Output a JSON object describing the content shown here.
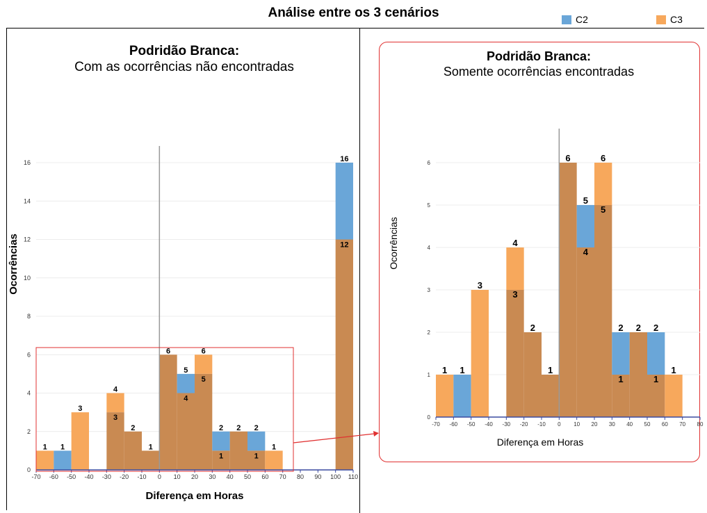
{
  "title": "Análise entre os 3 cenários",
  "legend": [
    {
      "name": "C2",
      "color": "#6aa6d8"
    },
    {
      "name": "C3",
      "color": "#f7a85c"
    }
  ],
  "colors": {
    "c2": "#6aa6d8",
    "c3": "#f7a85c",
    "overlap": "#c98a52",
    "highlight": "#e03030"
  },
  "panels": [
    {
      "title_bold": "Podridão Branca:",
      "title_sub": "Com as ocorrências não encontradas"
    },
    {
      "title_bold": "Podridão Branca:",
      "title_sub": "Somente ocorrências encontradas"
    }
  ],
  "chart_data": [
    {
      "type": "bar",
      "title": "Podridão Branca: Com as ocorrências não encontradas",
      "xlabel": "Diferença em Horas",
      "ylabel": "Ocorrências",
      "xlim": [
        -70,
        110
      ],
      "ylim": [
        0,
        17
      ],
      "xticks": [
        -70,
        -60,
        -50,
        -40,
        -30,
        -20,
        -10,
        0,
        10,
        20,
        30,
        40,
        50,
        60,
        70,
        80,
        90,
        100,
        110
      ],
      "yticks": [
        0,
        2,
        4,
        6,
        8,
        10,
        12,
        14,
        16
      ],
      "bin_width": 10,
      "series": [
        {
          "name": "C2",
          "x": [
            -60,
            -30,
            -20,
            -10,
            0,
            10,
            20,
            30,
            40,
            50,
            100
          ],
          "values": [
            1,
            3,
            2,
            1,
            6,
            5,
            5,
            2,
            2,
            2,
            16
          ]
        },
        {
          "name": "C3",
          "x": [
            -70,
            -50,
            -30,
            -20,
            -10,
            0,
            10,
            20,
            30,
            40,
            50,
            60,
            100
          ],
          "values": [
            1,
            3,
            4,
            2,
            1,
            6,
            4,
            6,
            1,
            2,
            1,
            1,
            12
          ]
        }
      ],
      "annotations": [
        {
          "x": -70,
          "label": "1"
        },
        {
          "x": -60,
          "label": "1"
        },
        {
          "x": -50,
          "label": "3"
        },
        {
          "x": -30,
          "label": "4"
        },
        {
          "x": -30,
          "label": "3"
        },
        {
          "x": -20,
          "label": "2"
        },
        {
          "x": -10,
          "label": "1"
        },
        {
          "x": 0,
          "label": "6"
        },
        {
          "x": 10,
          "label": "5"
        },
        {
          "x": 10,
          "label": "4"
        },
        {
          "x": 20,
          "label": "6"
        },
        {
          "x": 20,
          "label": "5"
        },
        {
          "x": 30,
          "label": "2"
        },
        {
          "x": 30,
          "label": "1"
        },
        {
          "x": 40,
          "label": "2"
        },
        {
          "x": 50,
          "label": "2"
        },
        {
          "x": 50,
          "label": "1"
        },
        {
          "x": 60,
          "label": "1"
        },
        {
          "x": 100,
          "label": "16"
        },
        {
          "x": 100,
          "label": "12"
        }
      ]
    },
    {
      "type": "bar",
      "title": "Podridão Branca: Somente ocorrências encontradas",
      "xlabel": "Diferença em Horas",
      "ylabel": "Ocorrências",
      "xlim": [
        -70,
        80
      ],
      "ylim": [
        0,
        7
      ],
      "xticks": [
        -70,
        -60,
        -50,
        -40,
        -30,
        -20,
        -10,
        0,
        10,
        20,
        30,
        40,
        50,
        60,
        70,
        80
      ],
      "yticks": [
        0,
        1,
        2,
        3,
        4,
        5,
        6
      ],
      "bin_width": 10,
      "series": [
        {
          "name": "C2",
          "x": [
            -60,
            -30,
            -20,
            -10,
            0,
            10,
            20,
            30,
            40,
            50
          ],
          "values": [
            1,
            3,
            2,
            1,
            6,
            5,
            5,
            2,
            2,
            2
          ]
        },
        {
          "name": "C3",
          "x": [
            -70,
            -50,
            -30,
            -20,
            -10,
            0,
            10,
            20,
            30,
            40,
            50,
            60
          ],
          "values": [
            1,
            3,
            4,
            2,
            1,
            6,
            4,
            6,
            1,
            2,
            1,
            1
          ]
        }
      ],
      "annotations": [
        {
          "x": -70,
          "label": "1"
        },
        {
          "x": -60,
          "label": "1"
        },
        {
          "x": -50,
          "label": "3"
        },
        {
          "x": -30,
          "label": "4"
        },
        {
          "x": -30,
          "label": "3"
        },
        {
          "x": -20,
          "label": "2"
        },
        {
          "x": -10,
          "label": "1"
        },
        {
          "x": 0,
          "label": "6"
        },
        {
          "x": 10,
          "label": "5"
        },
        {
          "x": 10,
          "label": "4"
        },
        {
          "x": 20,
          "label": "6"
        },
        {
          "x": 20,
          "label": "5"
        },
        {
          "x": 30,
          "label": "2"
        },
        {
          "x": 30,
          "label": "1"
        },
        {
          "x": 40,
          "label": "2"
        },
        {
          "x": 50,
          "label": "2"
        },
        {
          "x": 50,
          "label": "1"
        },
        {
          "x": 60,
          "label": "1"
        }
      ]
    }
  ]
}
